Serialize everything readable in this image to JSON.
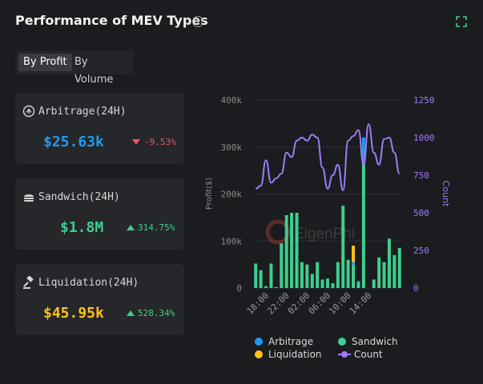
{
  "header": {
    "title": "Performance of MEV Types"
  },
  "toggle": {
    "by_profit": "By Profit",
    "by_volume": "By Volume"
  },
  "cards": {
    "arbitrage": {
      "label": "Arbitrage(24H)",
      "value": "$25.63k",
      "change": "-9.53%",
      "color": "#1e9bf0",
      "change_color": "#f0506e"
    },
    "sandwich": {
      "label": "Sandwich(24H)",
      "value": "$1.8M",
      "change": "314.75%",
      "color": "#3ecf8e",
      "change_color": "#3ecf8e"
    },
    "liquidation": {
      "label": "Liquidation(24H)",
      "value": "$45.95k",
      "change": "528.34%",
      "color": "#ffc21a",
      "change_color": "#3ecf8e"
    }
  },
  "watermark": "EigenPhi",
  "chart_data": {
    "type": "bar+line",
    "ylabel_left": "Profit($)",
    "ylabel_right": "Count",
    "left_ticks": [
      "400k",
      "300k",
      "200k",
      "100k",
      "0"
    ],
    "right_ticks": [
      "1250",
      "1000",
      "750",
      "500",
      "250",
      "0"
    ],
    "ylim_left": [
      0,
      400000
    ],
    "ylim_right": [
      0,
      1250
    ],
    "x_tick_labels": [
      "18:00",
      "22:00",
      "02:00",
      "06:00",
      "10:00",
      "14:00"
    ],
    "x_tick_indices": [
      2,
      6,
      10,
      14,
      18,
      22
    ],
    "legend": [
      "Arbitrage",
      "Sandwich",
      "Liquidation",
      "Count"
    ],
    "series": [
      {
        "name": "Arbitrage",
        "color": "#1e9bf0",
        "values": [
          0,
          0,
          0,
          0,
          0,
          0,
          0,
          0,
          0,
          0,
          0,
          0,
          0,
          0,
          0,
          0,
          0,
          0,
          0,
          5000,
          3000,
          55000,
          0,
          0,
          0,
          0,
          0,
          0,
          0
        ]
      },
      {
        "name": "Sandwich",
        "color": "#3ecf8e",
        "values": [
          52000,
          38000,
          4000,
          52000,
          2000,
          95000,
          155000,
          160000,
          160000,
          55000,
          50000,
          30000,
          55000,
          18000,
          20000,
          10000,
          55000,
          175000,
          60000,
          50000,
          12000,
          265000,
          0,
          18000,
          65000,
          55000,
          105000,
          70000,
          85000
        ]
      },
      {
        "name": "Liquidation",
        "color": "#ffc21a",
        "values": [
          0,
          0,
          0,
          0,
          0,
          0,
          0,
          0,
          0,
          0,
          0,
          0,
          0,
          0,
          0,
          0,
          0,
          0,
          0,
          35000,
          0,
          0,
          0,
          0,
          0,
          0,
          0,
          0,
          0
        ]
      },
      {
        "name": "Count",
        "color": "#a07cf5",
        "values": [
          660,
          680,
          850,
          700,
          730,
          760,
          900,
          870,
          980,
          1000,
          980,
          1020,
          1000,
          800,
          660,
          750,
          820,
          650,
          980,
          1010,
          1050,
          820,
          1090,
          900,
          820,
          990,
          1000,
          900,
          760
        ]
      }
    ]
  }
}
